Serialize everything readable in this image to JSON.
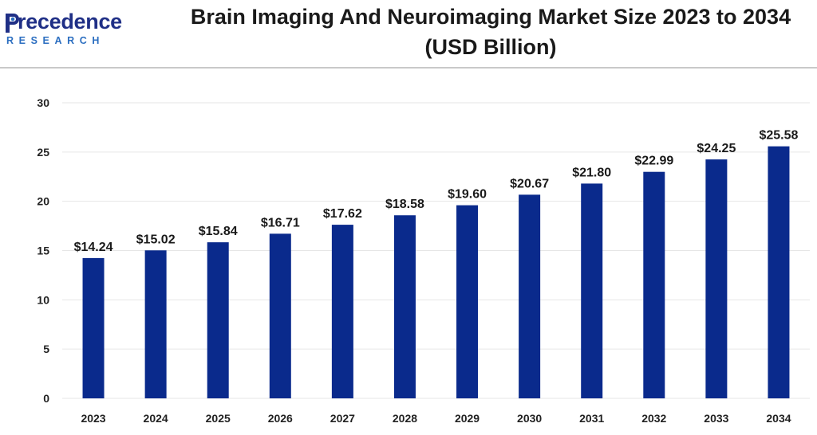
{
  "brand": {
    "name": "recedence",
    "initial": "P",
    "sub": "RESEARCH"
  },
  "colors": {
    "bar": "#0a2a8c",
    "grid": "#e6e6e6",
    "brand_dark": "#1f2f86",
    "brand_light": "#2b6ec0"
  },
  "chart_data": {
    "type": "bar",
    "title": "Brain Imaging And Neuroimaging Market Size 2023 to 2034 (USD Billion)",
    "categories": [
      "2023",
      "2024",
      "2025",
      "2026",
      "2027",
      "2028",
      "2029",
      "2030",
      "2031",
      "2032",
      "2033",
      "2034"
    ],
    "values": [
      14.24,
      15.02,
      15.84,
      16.71,
      17.62,
      18.58,
      19.6,
      20.67,
      21.8,
      22.99,
      24.25,
      25.58
    ],
    "data_labels": [
      "$14.24",
      "$15.02",
      "$15.84",
      "$16.71",
      "$17.62",
      "$18.58",
      "$19.60",
      "$20.67",
      "$21.80",
      "$22.99",
      "$24.25",
      "$25.58"
    ],
    "yticks": [
      "0",
      "5",
      "10",
      "15",
      "20",
      "25",
      "30"
    ],
    "ylim": [
      0,
      30
    ],
    "grid": true,
    "legend": "none"
  }
}
